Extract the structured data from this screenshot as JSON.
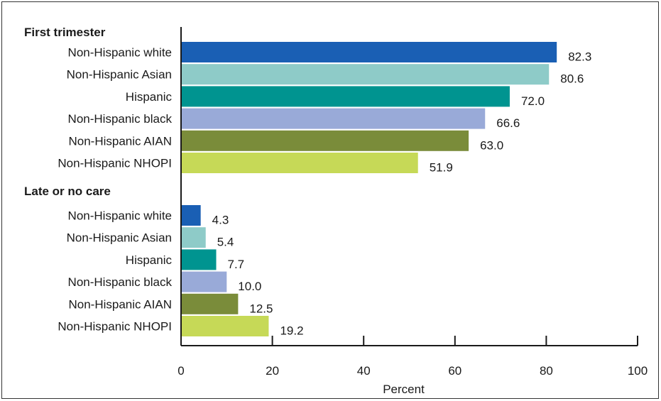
{
  "chart_data": {
    "type": "bar",
    "orientation": "horizontal",
    "xlabel": "Percent",
    "xlim": [
      0,
      100
    ],
    "xticks": [
      "0",
      "20",
      "40",
      "60",
      "80",
      "100"
    ],
    "grid": false,
    "groups": [
      {
        "title": "First trimester",
        "categories": [
          "Non-Hispanic white",
          "Non-Hispanic Asian",
          "Hispanic",
          "Non-Hispanic black",
          "Non-Hispanic AIAN",
          "Non-Hispanic NHOPI"
        ],
        "values": [
          82.3,
          80.6,
          72.0,
          66.6,
          63.0,
          51.9
        ],
        "value_labels": [
          "82.3",
          "80.6",
          "72.0",
          "66.6",
          "63.0",
          "51.9"
        ]
      },
      {
        "title": "Late or no care",
        "categories": [
          "Non-Hispanic white",
          "Non-Hispanic Asian",
          "Hispanic",
          "Non-Hispanic black",
          "Non-Hispanic AIAN",
          "Non-Hispanic NHOPI"
        ],
        "values": [
          4.3,
          5.4,
          7.7,
          10.0,
          12.5,
          19.2
        ],
        "value_labels": [
          "4.3",
          "5.4",
          "7.7",
          "10.0",
          "12.5",
          "19.2"
        ]
      }
    ],
    "colors": [
      "#1a5fb4",
      "#8ecbc8",
      "#009490",
      "#99aad8",
      "#7a8c3a",
      "#c6d957"
    ]
  }
}
